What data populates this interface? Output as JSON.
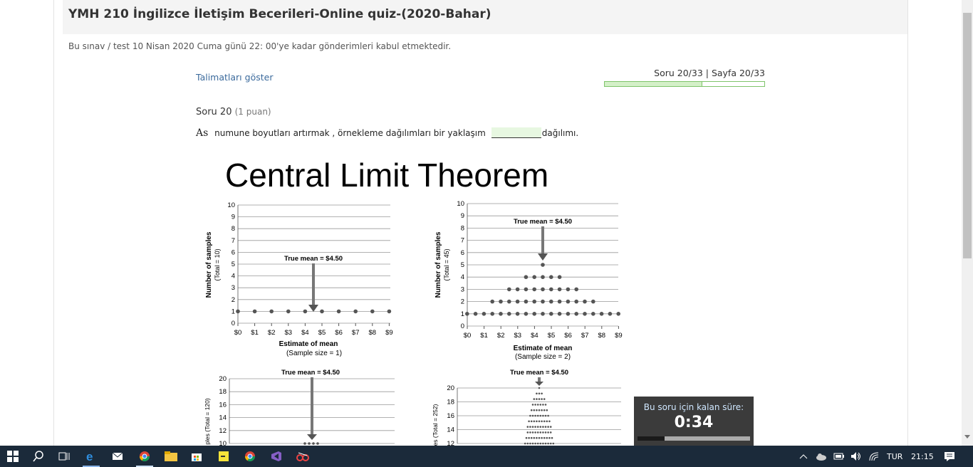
{
  "page": {
    "title": "YMH 210 İngilizce İletişim Becerileri-Online quiz-(2020-Bahar)",
    "deadline": "Bu sınav / test 10 Nisan 2020 Cuma günü 22: 00'ye kadar gönderimleri kabul etmektedir.",
    "show_instructions": "Talimatları göster",
    "progress_label": "Soru 20/33 | Sayfa 20/33",
    "progress_fraction": 0.61
  },
  "question": {
    "heading": "Soru 20",
    "points": "(1 puan)",
    "lead": "As",
    "text_before": "numune boyutları artırmak ,  örnekleme dağılımları  bir yaklaşım",
    "text_after": "dağılımı."
  },
  "figure": {
    "title": "Central Limit Theorem",
    "panels": [
      {
        "ylabel": "Number of samples",
        "ylabel2": "(Total = 10)",
        "xlabel": "Estimate of mean",
        "xlabel2": "(Sample size = 1)",
        "true_mean_label": "True mean  =  $4.50",
        "yticks": [
          "0",
          "1",
          "2",
          "3",
          "4",
          "5",
          "6",
          "7",
          "8",
          "9",
          "10"
        ],
        "xticks": [
          "$0",
          "$1",
          "$2",
          "$3",
          "$4",
          "$5",
          "$6",
          "$7",
          "$8",
          "$9"
        ]
      },
      {
        "ylabel": "Number of samples",
        "ylabel2": "(Total = 45)",
        "xlabel": "Estimate of mean",
        "xlabel2": "(Sample size = 2)",
        "true_mean_label": "True mean  =  $4.50",
        "yticks": [
          "0",
          "1",
          "2",
          "3",
          "4",
          "5",
          "6",
          "7",
          "8",
          "9",
          "10"
        ],
        "xticks": [
          "$0",
          "$1",
          "$2",
          "$3",
          "$4",
          "$5",
          "$6",
          "$7",
          "$8",
          "$9"
        ]
      },
      {
        "ylabel": "ples (Total = 120)",
        "true_mean_label": "True mean  =  $4.50",
        "yticks": [
          "10",
          "12",
          "14",
          "16",
          "18",
          "20"
        ]
      },
      {
        "ylabel": "es (Total = 252)",
        "true_mean_label": "True mean  =  $4.50",
        "yticks": [
          "12",
          "14",
          "16",
          "18",
          "20"
        ]
      }
    ]
  },
  "timer": {
    "label": "Bu soru için kalan süre:",
    "value": "0:34",
    "remaining_fraction": 0.24
  },
  "taskbar": {
    "language": "TUR",
    "time": "21:15",
    "apps": [
      "start-icon",
      "search-icon",
      "task-view-icon",
      "edge-icon",
      "mail-icon",
      "chrome-icon",
      "file-explorer-icon",
      "store-icon",
      "sticky-notes-icon",
      "chrome-alt-icon",
      "visual-studio-icon",
      "snipping-icon"
    ]
  },
  "colors": {
    "link": "#3b6a9c",
    "progress_border": "#7fc46b",
    "taskbar": "#1b2a3a"
  }
}
